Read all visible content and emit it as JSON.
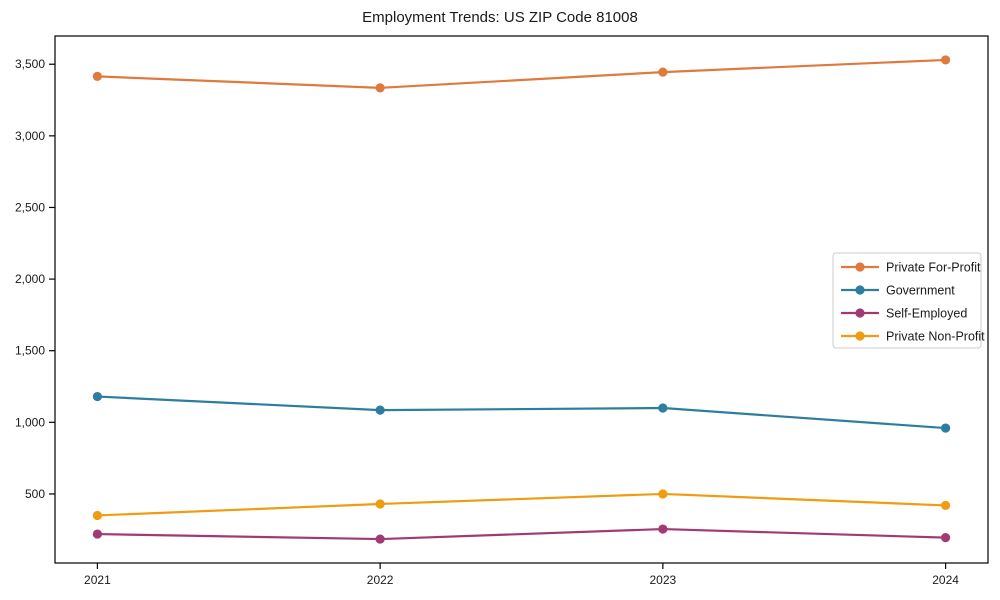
{
  "chart_data": {
    "type": "line",
    "title": "Employment Trends: US ZIP Code 81008",
    "xlabel": "",
    "ylabel": "",
    "x": [
      2021,
      2022,
      2023,
      2024
    ],
    "x_tick_labels": [
      "2021",
      "2022",
      "2023",
      "2024"
    ],
    "y_ticks": [
      500,
      1000,
      1500,
      2000,
      2500,
      3000,
      3500
    ],
    "y_tick_labels": [
      "500",
      "1,000",
      "1,500",
      "2,000",
      "2,500",
      "3,000",
      "3,500"
    ],
    "xlim": [
      2020.85,
      2024.15
    ],
    "ylim": [
      18,
      3697
    ],
    "grid": false,
    "legend_position": "center right",
    "background_color": "#ffffff",
    "axis_color": "#000000",
    "series": [
      {
        "name": "Private For-Profit",
        "color": "#e0793e",
        "values": [
          3415,
          3335,
          3445,
          3530
        ]
      },
      {
        "name": "Government",
        "color": "#2d7d9f",
        "values": [
          1180,
          1085,
          1100,
          960
        ]
      },
      {
        "name": "Self-Employed",
        "color": "#a23a72",
        "values": [
          220,
          185,
          255,
          195
        ]
      },
      {
        "name": "Private Non-Profit",
        "color": "#f09c10",
        "values": [
          350,
          430,
          500,
          420
        ]
      }
    ]
  }
}
